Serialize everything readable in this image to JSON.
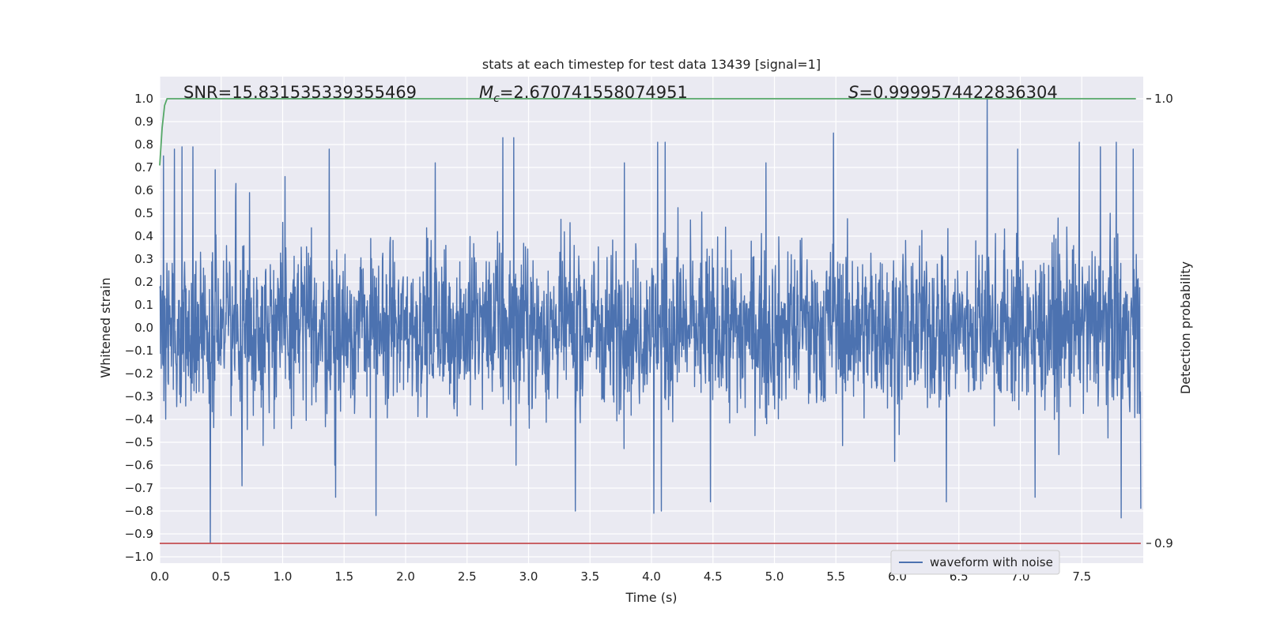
{
  "chart_data": {
    "type": "line",
    "title": "stats at each timestep for test data 13439 [signal=1]",
    "xlabel": "Time (s)",
    "ylabel": "Whitened strain",
    "y2label": "Detection probability",
    "xlim": [
      0.0,
      8.0
    ],
    "ylim": [
      -1.05,
      1.05
    ],
    "y2lim": [
      0.8955,
      1.0045
    ],
    "x_ticks": [
      0.0,
      0.5,
      1.0,
      1.5,
      2.0,
      2.5,
      3.0,
      3.5,
      4.0,
      4.5,
      5.0,
      5.5,
      6.0,
      6.5,
      7.0,
      7.5
    ],
    "x_tick_labels": [
      "0.0",
      "0.5",
      "1.0",
      "1.5",
      "2.0",
      "2.5",
      "3.0",
      "3.5",
      "4.0",
      "4.5",
      "5.0",
      "5.5",
      "6.0",
      "6.5",
      "7.0",
      "7.5"
    ],
    "y_ticks": [
      1.0,
      0.9,
      0.8,
      0.7,
      0.6,
      0.5,
      0.4,
      0.3,
      0.2,
      0.1,
      0.0,
      -0.1,
      -0.2,
      -0.3,
      -0.4,
      -0.5,
      -0.6,
      -0.7,
      -0.8,
      -0.9,
      -1.0
    ],
    "y_tick_labels": [
      "1.0",
      "0.9",
      "0.8",
      "0.7",
      "0.6",
      "0.5",
      "0.4",
      "0.3",
      "0.2",
      "0.1",
      "0.0",
      "−0.1",
      "−0.2",
      "−0.3",
      "−0.4",
      "−0.5",
      "−0.6",
      "−0.7",
      "−0.8",
      "−0.9",
      "−1.0"
    ],
    "y2_ticks": [
      1.0,
      0.9
    ],
    "y2_tick_labels": [
      "1.0",
      "0.9"
    ],
    "grid": true,
    "legend_position": "lower-right",
    "annotations": {
      "snr": "SNR=15.831535339355469",
      "mc_symbol": "M",
      "mc_subscript": "c",
      "mc_value": "=2.670741558074951",
      "s_symbol": "S",
      "s_value": "=0.9999574422836304"
    },
    "series": [
      {
        "name": "waveform with noise",
        "color": "#4c72b0",
        "axis": "left",
        "x_range": [
          0.0,
          7.98
        ],
        "envelope_abs": 1.0,
        "typical_band": [
          -0.5,
          0.5
        ],
        "peaks": [
          {
            "x": 0.03,
            "y": 0.75
          },
          {
            "x": 0.12,
            "y": 0.78
          },
          {
            "x": 0.18,
            "y": 0.79
          },
          {
            "x": 0.27,
            "y": 0.79
          },
          {
            "x": 0.41,
            "y": -0.94
          },
          {
            "x": 0.45,
            "y": 0.69
          },
          {
            "x": 0.62,
            "y": 0.63
          },
          {
            "x": 0.67,
            "y": -0.69
          },
          {
            "x": 0.73,
            "y": 0.59
          },
          {
            "x": 1.02,
            "y": 0.66
          },
          {
            "x": 1.38,
            "y": 0.78
          },
          {
            "x": 1.43,
            "y": -0.74
          },
          {
            "x": 1.76,
            "y": -0.82
          },
          {
            "x": 2.24,
            "y": 0.72
          },
          {
            "x": 2.79,
            "y": 0.83
          },
          {
            "x": 2.88,
            "y": 0.83
          },
          {
            "x": 3.38,
            "y": -0.8
          },
          {
            "x": 3.78,
            "y": 0.72
          },
          {
            "x": 4.05,
            "y": 0.81
          },
          {
            "x": 4.11,
            "y": 0.81
          },
          {
            "x": 4.02,
            "y": -0.81
          },
          {
            "x": 4.08,
            "y": -0.8
          },
          {
            "x": 4.48,
            "y": -0.76
          },
          {
            "x": 4.93,
            "y": 0.72
          },
          {
            "x": 5.48,
            "y": 0.85
          },
          {
            "x": 6.4,
            "y": -0.76
          },
          {
            "x": 6.73,
            "y": 1.0
          },
          {
            "x": 6.98,
            "y": 0.78
          },
          {
            "x": 7.12,
            "y": -0.74
          },
          {
            "x": 7.48,
            "y": 0.81
          },
          {
            "x": 7.65,
            "y": 0.79
          },
          {
            "x": 7.78,
            "y": 0.81
          },
          {
            "x": 7.82,
            "y": -0.83
          },
          {
            "x": 7.92,
            "y": 0.78
          },
          {
            "x": 7.98,
            "y": -0.79
          }
        ]
      },
      {
        "color": "#55a868",
        "axis": "right",
        "x": [
          0.0,
          0.02,
          0.04,
          0.06,
          7.94
        ],
        "y": [
          0.985,
          0.9935,
          0.9985,
          1.0,
          1.0
        ]
      },
      {
        "color": "#c44e52",
        "axis": "right",
        "x": [
          0.0,
          7.98
        ],
        "y": [
          0.9,
          0.9
        ]
      }
    ]
  }
}
